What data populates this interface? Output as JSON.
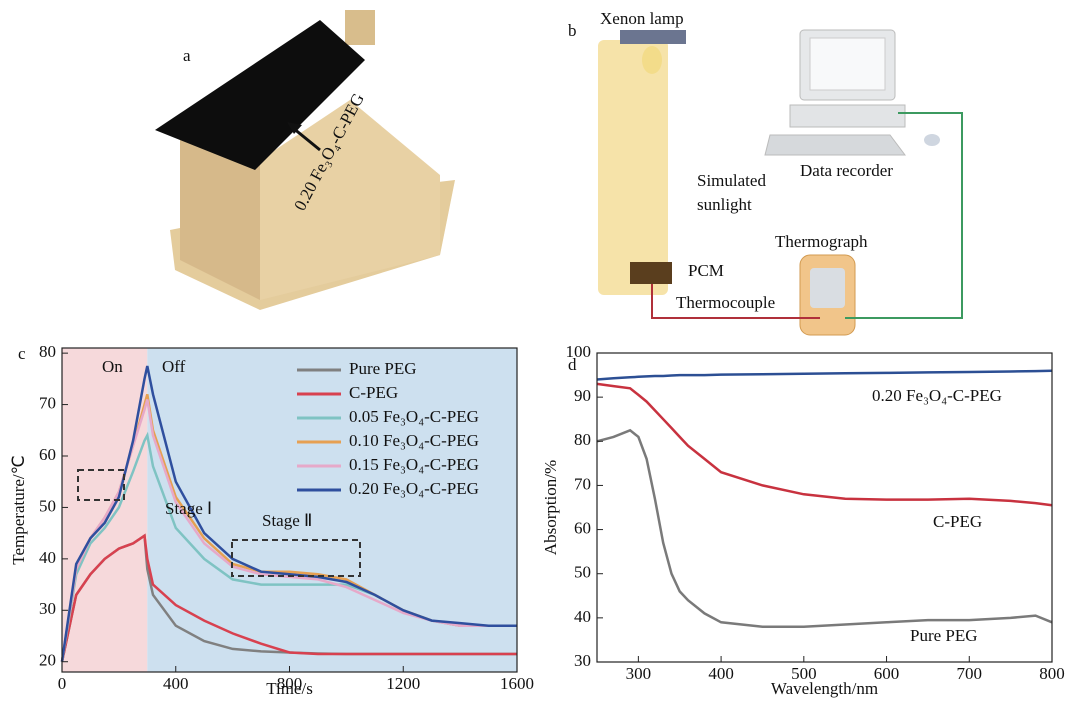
{
  "panel_a": {
    "label": "a",
    "annotation": "0.20 Fe₃O₄-C-PEG"
  },
  "panel_b": {
    "label": "b",
    "texts": [
      "Xenon lamp",
      "Data recorder",
      "Simulated",
      "sunlight",
      "Thermograph",
      "PCM",
      "Thermocouple"
    ]
  },
  "chart_data": [
    {
      "type": "line",
      "panel_label": "c",
      "x_label": "Time/s",
      "y_label": "Temperature/℃",
      "x": [
        0,
        50,
        100,
        150,
        200,
        250,
        290,
        300,
        320,
        400,
        500,
        600,
        700,
        800,
        900,
        1000,
        1100,
        1200,
        1300,
        1400,
        1500,
        1600
      ],
      "xlim": [
        0,
        1600
      ],
      "xticks": [
        0,
        400,
        800,
        1200,
        1600
      ],
      "ylim": [
        18,
        81
      ],
      "yticks": [
        20,
        30,
        40,
        50,
        60,
        70,
        80
      ],
      "legend": "upper right",
      "shaded_regions": [
        {
          "xlim": [
            0,
            300
          ],
          "color": "#f6d9db"
        },
        {
          "xlim": [
            300,
            1600
          ],
          "color": "#cde0ef"
        }
      ],
      "annotations": [
        "On",
        "Off",
        "Stage Ⅰ",
        "Stage Ⅱ"
      ],
      "series": [
        {
          "name": "Pure PEG",
          "color": "#808080",
          "values": [
            20,
            33,
            37,
            40,
            42,
            43,
            44.5,
            38,
            33,
            27,
            24,
            22.5,
            22,
            21.8,
            21.6,
            21.5,
            21.5,
            21.5,
            21.5,
            21.5,
            21.5,
            21.5
          ]
        },
        {
          "name": "C-PEG",
          "color": "#d8414f",
          "values": [
            20,
            33,
            37,
            40,
            42,
            43,
            44.5,
            40,
            35,
            31,
            28,
            25.5,
            23.5,
            21.8,
            21.5,
            21.5,
            21.5,
            21.5,
            21.5,
            21.5,
            21.5,
            21.5
          ]
        },
        {
          "name": "0.05 Fe₃O₄-C-PEG",
          "color": "#7fc3c3",
          "values": [
            20,
            37,
            43,
            46,
            50,
            57,
            63,
            64,
            58,
            46,
            40,
            36,
            35,
            35,
            35,
            35,
            33,
            30,
            28,
            27,
            27,
            27
          ]
        },
        {
          "name": "0.10 Fe₃O₄-C-PEG",
          "color": "#e6a052",
          "values": [
            20,
            38,
            44,
            48,
            53,
            62,
            70,
            72,
            65,
            52,
            44,
            39,
            37.5,
            37.5,
            37,
            36,
            33,
            30,
            28,
            27,
            27,
            27
          ]
        },
        {
          "name": "0.15 Fe₃O₄-C-PEG",
          "color": "#e6a9c9",
          "values": [
            20,
            38,
            44,
            48,
            53,
            62,
            69,
            71,
            64,
            51,
            43,
            38.5,
            37,
            36.5,
            36,
            34.5,
            32,
            29.5,
            28,
            27,
            27,
            27
          ]
        },
        {
          "name": "0.20 Fe₃O₄-C-PEG",
          "color": "#2f4f9e",
          "values": [
            20,
            39,
            44,
            47,
            52,
            63,
            75,
            77.5,
            72,
            55,
            45,
            40,
            37.5,
            37,
            36.5,
            35.5,
            33,
            30,
            28,
            27.5,
            27,
            27
          ]
        }
      ]
    },
    {
      "type": "line",
      "panel_label": "d",
      "x_label": "Wavelength/nm",
      "y_label": "Absorption/%",
      "x": [
        250,
        270,
        290,
        300,
        310,
        320,
        330,
        340,
        350,
        360,
        380,
        400,
        450,
        500,
        550,
        600,
        650,
        700,
        750,
        780,
        800
      ],
      "xlim": [
        250,
        800
      ],
      "xticks": [
        300,
        400,
        500,
        600,
        700,
        800
      ],
      "ylim": [
        30,
        100
      ],
      "yticks": [
        30,
        40,
        50,
        60,
        70,
        80,
        90,
        100
      ],
      "series": [
        {
          "name": "Pure PEG",
          "color": "#7a7a7a",
          "values": [
            80,
            81,
            82.5,
            81,
            76,
            67,
            57,
            50,
            46,
            44,
            41,
            39,
            38,
            38,
            38.5,
            39,
            39.5,
            39.5,
            40,
            40.5,
            39
          ]
        },
        {
          "name": "C-PEG",
          "color": "#c8323f",
          "values": [
            93,
            92.5,
            92,
            90.5,
            89,
            87,
            85,
            83,
            81,
            79,
            76,
            73,
            70,
            68,
            67,
            66.8,
            66.8,
            67,
            66.5,
            66,
            65.5
          ]
        },
        {
          "name": "0.20 Fe₃O₄-C-PEG",
          "color": "#2c4f94",
          "values": [
            94,
            94.3,
            94.5,
            94.6,
            94.7,
            94.8,
            94.8,
            94.9,
            95,
            95,
            95,
            95.1,
            95.2,
            95.3,
            95.4,
            95.5,
            95.6,
            95.7,
            95.8,
            95.9,
            96
          ]
        }
      ]
    }
  ]
}
